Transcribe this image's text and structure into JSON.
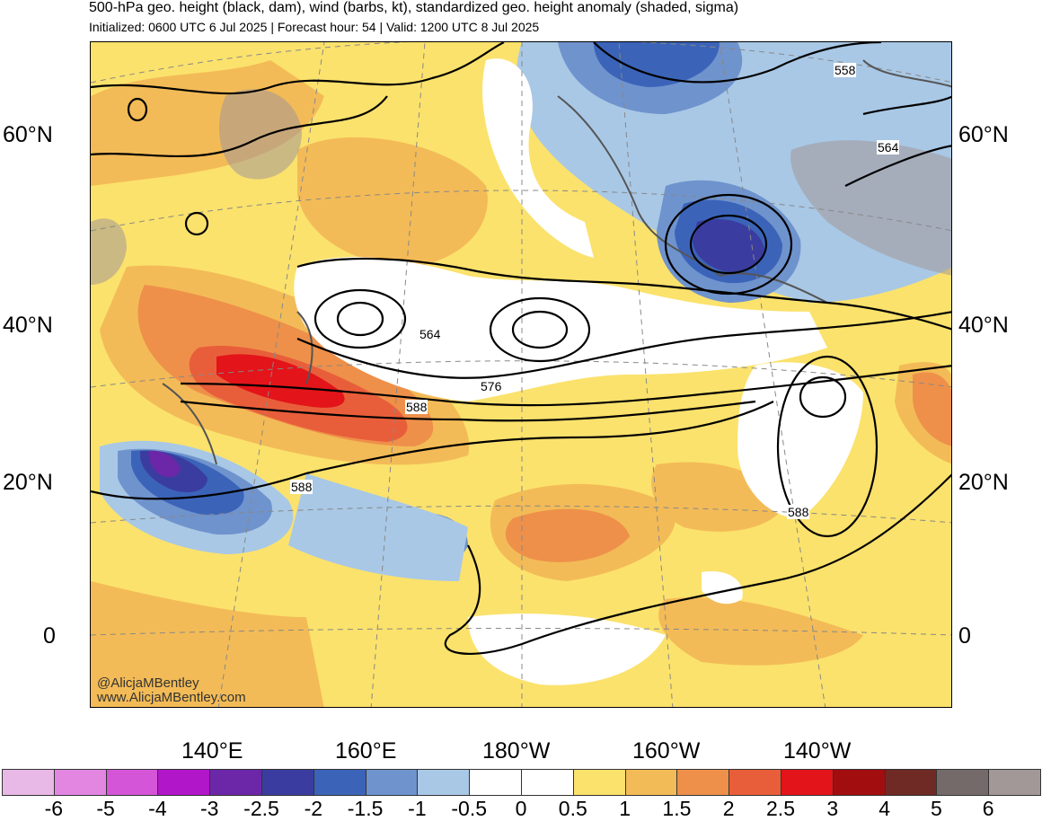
{
  "header": {
    "title": "500-hPa geo. height (black, dam), wind (barbs, kt), standardized geo. height anomaly (shaded, sigma)",
    "subtitle": "Initialized: 0600 UTC 6 Jul 2025 | Forecast hour: 54 | Valid: 1200 UTC 8 Jul 2025"
  },
  "map": {
    "lat_labels": [
      "60°N",
      "40°N",
      "20°N",
      "0"
    ],
    "lon_labels": [
      "140°E",
      "160°E",
      "180°W",
      "160°W",
      "140°W"
    ],
    "contour_labels": [
      "558",
      "564",
      "564",
      "576",
      "588",
      "588",
      "588"
    ],
    "credit_handle": "@AlicjaMBentley",
    "credit_url": "www.AlicjaMBentley.com",
    "colors": {
      "background_positive": "#fbe26c",
      "land_outline": "#555555",
      "grid": "#888888",
      "contour": "#000000"
    }
  },
  "colorbar": {
    "labels": [
      "-6",
      "-5",
      "-4",
      "-3",
      "-2.5",
      "-2",
      "-1.5",
      "-1",
      "-0.5",
      "0",
      "0.5",
      "1",
      "1.5",
      "2",
      "2.5",
      "3",
      "4",
      "5",
      "6"
    ],
    "colors": [
      "#e8b8e6",
      "#e286e2",
      "#d455d8",
      "#b116c8",
      "#6b27a8",
      "#3a3d9f",
      "#3b64b9",
      "#6f93cd",
      "#a9c8e6",
      "#ffffff",
      "#ffffff",
      "#fbe26c",
      "#f3bb57",
      "#ee904a",
      "#e95e3a",
      "#e3141a",
      "#a20d0f",
      "#6f2a25",
      "#756a6a",
      "#a39898"
    ]
  }
}
